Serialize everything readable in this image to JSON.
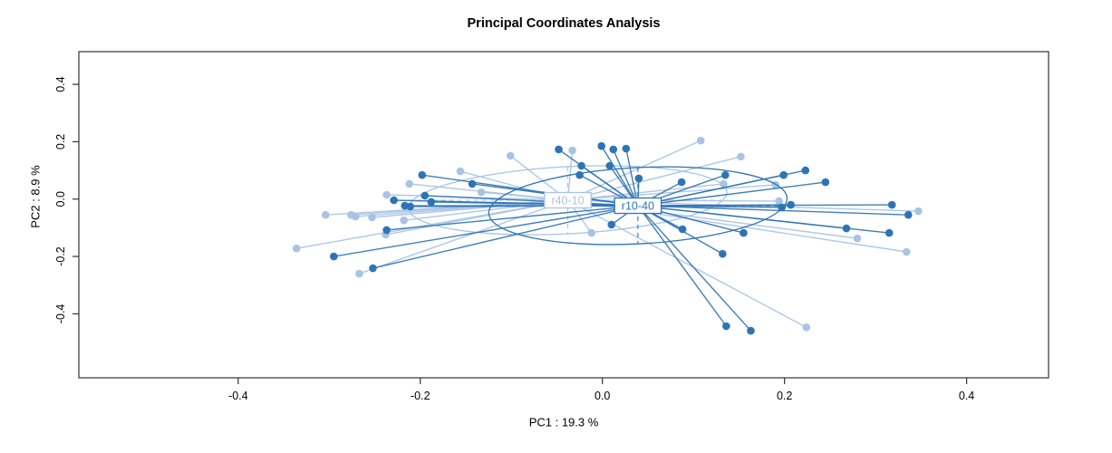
{
  "page": {
    "background": "#ffffff",
    "frame_color": "#333333",
    "text_color": "#000000"
  },
  "chart_data": {
    "type": "scatter",
    "subtype": "pcoa-ordination-spider",
    "title": "Principal Coordinates Analysis",
    "xlabel": "PC1 :  19.3 %",
    "ylabel": "PC2 :  8.9 %",
    "xlim": [
      -0.575,
      0.49
    ],
    "ylim": [
      -0.623,
      0.514
    ],
    "xticks": [
      -0.4,
      -0.2,
      0.0,
      0.2,
      0.4
    ],
    "xtick_labels": [
      "-0.4",
      "-0.2",
      "0.0",
      "0.2",
      "0.4"
    ],
    "yticks": [
      -0.4,
      -0.2,
      0.0,
      0.2,
      0.4
    ],
    "ytick_labels": [
      "-0.4",
      "-0.2",
      "0.0",
      "0.2",
      "0.4"
    ],
    "grid": false,
    "legend_position": "none",
    "groups": [
      {
        "name": "r40-10",
        "color": "#a9c3e5",
        "label_text_color": "#a9c3e5",
        "label_box_fill": "#ffffff",
        "centroid": [
          -0.038,
          -0.004
        ],
        "ellipse": {
          "rx": 0.175,
          "ry": 0.117,
          "angle": -3,
          "style": "solid"
        },
        "centroid_axes_style": "dashed",
        "points": [
          [
            -0.101,
            0.151
          ],
          [
            -0.156,
            0.097
          ],
          [
            -0.212,
            0.053
          ],
          [
            -0.133,
            0.024
          ],
          [
            -0.237,
            0.015
          ],
          [
            -0.304,
            -0.055
          ],
          [
            -0.276,
            -0.055
          ],
          [
            -0.271,
            -0.061
          ],
          [
            -0.253,
            -0.064
          ],
          [
            -0.218,
            -0.074
          ],
          [
            -0.238,
            -0.124
          ],
          [
            -0.336,
            -0.172
          ],
          [
            -0.267,
            -0.26
          ],
          [
            -0.033,
            0.17
          ],
          [
            0.108,
            0.204
          ],
          [
            0.152,
            0.148
          ],
          [
            0.133,
            0.053
          ],
          [
            -0.012,
            -0.118
          ],
          [
            0.19,
            0.05
          ],
          [
            0.194,
            -0.007
          ],
          [
            0.347,
            -0.042
          ],
          [
            0.28,
            -0.137
          ],
          [
            0.334,
            -0.184
          ],
          [
            0.224,
            -0.447
          ]
        ]
      },
      {
        "name": "r10-40",
        "color": "#2e74b5",
        "label_text_color": "#2e74b5",
        "label_box_fill": "#ffffff",
        "centroid": [
          0.039,
          -0.023
        ],
        "ellipse": {
          "rx": 0.164,
          "ry": 0.133,
          "angle": -3,
          "style": "solid"
        },
        "centroid_axes_style": "dashed",
        "points": [
          [
            -0.198,
            0.084
          ],
          [
            -0.143,
            0.053
          ],
          [
            -0.195,
            0.012
          ],
          [
            -0.229,
            -0.004
          ],
          [
            -0.217,
            -0.023
          ],
          [
            -0.211,
            -0.026
          ],
          [
            -0.188,
            -0.01
          ],
          [
            -0.237,
            -0.108
          ],
          [
            -0.295,
            -0.2
          ],
          [
            -0.252,
            -0.241
          ],
          [
            -0.048,
            0.173
          ],
          [
            -0.001,
            0.185
          ],
          [
            0.012,
            0.173
          ],
          [
            0.026,
            0.176
          ],
          [
            -0.023,
            0.116
          ],
          [
            0.008,
            0.116
          ],
          [
            -0.025,
            0.084
          ],
          [
            0.04,
            0.072
          ],
          [
            0.087,
            0.059
          ],
          [
            0.135,
            0.084
          ],
          [
            0.01,
            -0.089
          ],
          [
            0.088,
            -0.105
          ],
          [
            0.155,
            -0.118
          ],
          [
            0.132,
            -0.191
          ],
          [
            0.223,
            0.1
          ],
          [
            0.199,
            0.084
          ],
          [
            0.245,
            0.059
          ],
          [
            0.197,
            -0.029
          ],
          [
            0.207,
            -0.02
          ],
          [
            0.318,
            -0.02
          ],
          [
            0.336,
            -0.055
          ],
          [
            0.268,
            -0.102
          ],
          [
            0.315,
            -0.118
          ],
          [
            0.136,
            -0.443
          ],
          [
            0.163,
            -0.459
          ]
        ]
      }
    ]
  }
}
